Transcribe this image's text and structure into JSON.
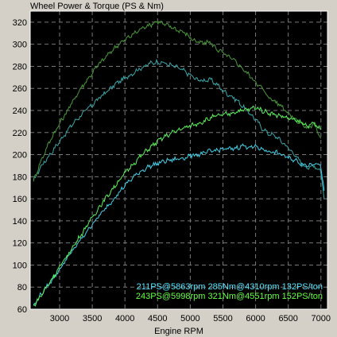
{
  "chart_data": {
    "type": "line",
    "title": "Wheel Power & Torque (PS & Nm)",
    "xlabel": "Engine RPM",
    "ylabel": "",
    "xlim": [
      2550,
      7100
    ],
    "ylim": [
      60,
      330
    ],
    "xticks": [
      3000,
      3500,
      4000,
      4500,
      5000,
      5500,
      6000,
      6500,
      7000
    ],
    "yticks": [
      60,
      80,
      100,
      120,
      140,
      160,
      180,
      200,
      220,
      240,
      260,
      280,
      300,
      320
    ],
    "grid": true,
    "background": "#000000",
    "grid_color": "#7a7a7a",
    "annotations": [
      {
        "text": "211PS@5863rpm 285Nm@4310rpm 132PS/ton",
        "color": "#55e6ff"
      },
      {
        "text": "243PS@5998rpm 321Nm@4551rpm 152PS/ton",
        "color": "#66ff44"
      }
    ],
    "series": [
      {
        "color": "#3aa6a8",
        "kind": "torque",
        "x": [
          2600,
          2700,
          2800,
          2900,
          3000,
          3100,
          3200,
          3300,
          3400,
          3500,
          3600,
          3700,
          3800,
          3900,
          4000,
          4100,
          4200,
          4300,
          4400,
          4500,
          4600,
          4700,
          4800,
          4900,
          5000,
          5100,
          5200,
          5300,
          5400,
          5500,
          5600,
          5700,
          5800,
          5900,
          6000,
          6100,
          6200,
          6300,
          6400,
          6500,
          6600,
          6700,
          6800,
          6900,
          7000,
          7050
        ],
        "values": [
          176,
          188,
          196,
          204,
          212,
          220,
          228,
          234,
          240,
          245,
          251,
          256,
          261,
          266,
          269,
          273,
          277,
          280,
          283,
          284,
          283,
          281,
          279,
          276,
          272,
          268,
          267,
          268,
          264,
          258,
          254,
          250,
          244,
          238,
          232,
          224,
          219,
          217,
          212,
          206,
          200,
          192,
          188,
          190,
          185,
          160
        ]
      },
      {
        "color": "#4a9a3a",
        "kind": "torque",
        "x": [
          2600,
          2700,
          2800,
          2900,
          3000,
          3100,
          3200,
          3300,
          3400,
          3500,
          3600,
          3700,
          3800,
          3900,
          4000,
          4100,
          4200,
          4300,
          4400,
          4500,
          4600,
          4700,
          4800,
          4900,
          5000,
          5100,
          5200,
          5300,
          5400,
          5500,
          5600,
          5700,
          5800,
          5900,
          6000,
          6100,
          6200,
          6300,
          6400,
          6500,
          6600,
          6700,
          6800,
          6900,
          7000
        ],
        "values": [
          176,
          192,
          206,
          218,
          228,
          238,
          248,
          258,
          266,
          274,
          282,
          288,
          294,
          300,
          304,
          308,
          312,
          316,
          318,
          321,
          318,
          316,
          313,
          311,
          306,
          302,
          301,
          302,
          296,
          292,
          288,
          284,
          278,
          272,
          266,
          260,
          252,
          248,
          244,
          238,
          232,
          228,
          224,
          228,
          215
        ]
      },
      {
        "color": "#40d0e8",
        "kind": "power",
        "x": [
          2600,
          2700,
          2800,
          2900,
          3000,
          3100,
          3200,
          3300,
          3400,
          3500,
          3600,
          3700,
          3800,
          3900,
          4000,
          4100,
          4200,
          4300,
          4400,
          4500,
          4600,
          4700,
          4800,
          4900,
          5000,
          5100,
          5200,
          5300,
          5400,
          5500,
          5600,
          5700,
          5800,
          5900,
          6000,
          6100,
          6200,
          6300,
          6400,
          6500,
          6600,
          6700,
          6800,
          6900,
          7000,
          7050
        ],
        "values": [
          63,
          72,
          80,
          88,
          96,
          105,
          113,
          121,
          129,
          137,
          144,
          151,
          158,
          165,
          172,
          178,
          183,
          187,
          190,
          192,
          194,
          195,
          196,
          197,
          199,
          200,
          201,
          203,
          204,
          205,
          205,
          206,
          208,
          207,
          207,
          205,
          203,
          202,
          200,
          197,
          195,
          192,
          190,
          193,
          190,
          165
        ]
      },
      {
        "color": "#5cf25c",
        "kind": "power",
        "x": [
          2600,
          2700,
          2800,
          2900,
          3000,
          3100,
          3200,
          3300,
          3400,
          3500,
          3600,
          3700,
          3800,
          3900,
          4000,
          4100,
          4200,
          4300,
          4400,
          4500,
          4600,
          4700,
          4800,
          4900,
          5000,
          5100,
          5200,
          5300,
          5400,
          5500,
          5600,
          5700,
          5800,
          5900,
          6000,
          6100,
          6200,
          6300,
          6400,
          6500,
          6600,
          6700,
          6800,
          6900,
          7000
        ],
        "values": [
          63,
          71,
          80,
          89,
          98,
          107,
          116,
          125,
          134,
          143,
          152,
          160,
          168,
          176,
          183,
          190,
          196,
          202,
          207,
          212,
          216,
          219,
          222,
          224,
          226,
          228,
          230,
          233,
          235,
          236,
          237,
          239,
          240,
          241,
          243,
          240,
          238,
          236,
          235,
          233,
          231,
          229,
          226,
          228,
          222
        ]
      }
    ]
  }
}
